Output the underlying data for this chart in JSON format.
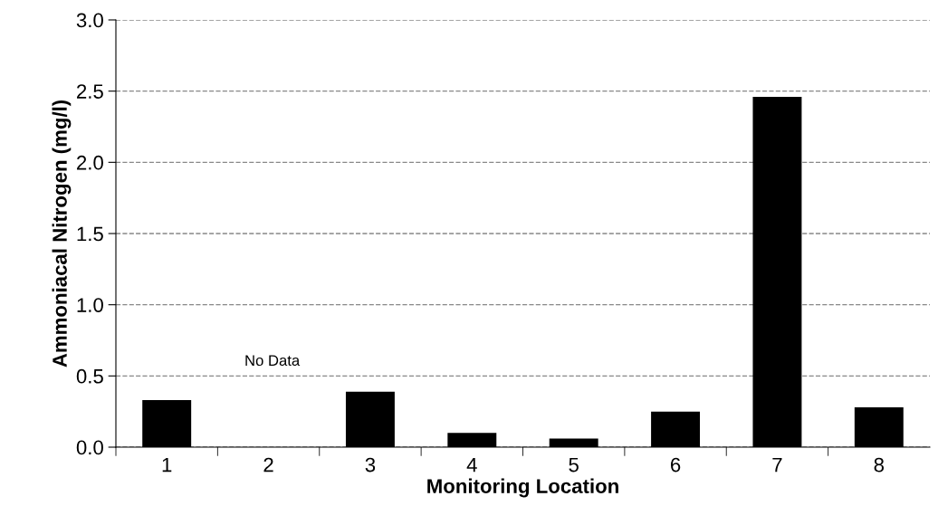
{
  "chart_data": {
    "type": "bar",
    "xlabel": "Monitoring Location",
    "ylabel": "Ammoniacal Nitrogen (mg/l)",
    "categories": [
      "1",
      "2",
      "3",
      "4",
      "5",
      "6",
      "7",
      "8"
    ],
    "values": [
      0.33,
      null,
      0.39,
      0.1,
      0.06,
      0.25,
      2.46,
      0.28
    ],
    "color": "#000000",
    "ylim": [
      0,
      3.0
    ],
    "yticks": [
      {
        "value": 0,
        "label": "0.0"
      },
      {
        "value": 0.5,
        "label": "0.5"
      },
      {
        "value": 1.0,
        "label": "1.0"
      },
      {
        "value": 1.5,
        "label": "1.5"
      },
      {
        "value": 2.0,
        "label": "2.0"
      },
      {
        "value": 2.5,
        "label": "2.5"
      },
      {
        "value": 3.0,
        "label": "3.0"
      }
    ],
    "grid": "y",
    "annotations": [
      "No Data"
    ]
  }
}
